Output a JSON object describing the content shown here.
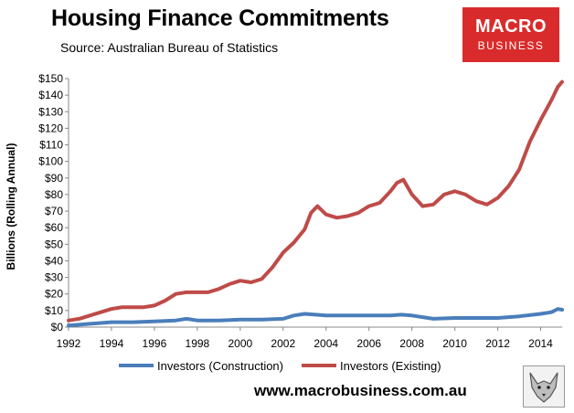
{
  "header": {
    "title": "Housing Finance Commitments",
    "subtitle": "Source: Australian Bureau of Statistics"
  },
  "logo": {
    "line1": "MACRO",
    "line2": "BUSINESS"
  },
  "footer": {
    "website": "www.macrobusiness.com.au",
    "mascot_icon": "fox-icon"
  },
  "colors": {
    "construction": "#4a7ebb",
    "existing": "#be4b48"
  },
  "chart_data": {
    "type": "line",
    "title": "Housing Finance Commitments",
    "xlabel": "",
    "ylabel": "Billions (Rolling Annual)",
    "xlim": [
      1992,
      2015
    ],
    "ylim": [
      0,
      150
    ],
    "grid": false,
    "legend": "bottom",
    "y_ticks": [
      "$0",
      "$10",
      "$20",
      "$30",
      "$40",
      "$50",
      "$60",
      "$70",
      "$80",
      "$90",
      "$100",
      "$110",
      "$120",
      "$130",
      "$140",
      "$150"
    ],
    "x_ticks": [
      "1992",
      "1994",
      "1996",
      "1998",
      "2000",
      "2002",
      "2004",
      "2006",
      "2008",
      "2010",
      "2012",
      "2014"
    ],
    "series": [
      {
        "name": "Investors (Construction)",
        "color": "#4a7ebb",
        "x": [
          1992,
          1993,
          1994,
          1995,
          1996,
          1997,
          1997.5,
          1998,
          1999,
          2000,
          2001,
          2002,
          2002.5,
          2003,
          2004,
          2005,
          2006,
          2007,
          2007.5,
          2008,
          2009,
          2010,
          2011,
          2012,
          2013,
          2014,
          2014.5,
          2014.8,
          2015
        ],
        "values": [
          1,
          2,
          3,
          3,
          3.5,
          4,
          5,
          4,
          4,
          4.5,
          4.5,
          5,
          7,
          8,
          7,
          7,
          7,
          7,
          7.5,
          7,
          5,
          5.5,
          5.5,
          5.5,
          6.5,
          8,
          9,
          11,
          10.5
        ]
      },
      {
        "name": "Investors (Existing)",
        "color": "#be4b48",
        "x": [
          1992,
          1992.5,
          1993,
          1993.5,
          1994,
          1994.5,
          1995,
          1995.5,
          1996,
          1996.5,
          1997,
          1997.5,
          1998,
          1998.5,
          1999,
          1999.5,
          2000,
          2000.5,
          2001,
          2001.5,
          2002,
          2002.5,
          2003,
          2003.3,
          2003.6,
          2004,
          2004.5,
          2005,
          2005.5,
          2006,
          2006.5,
          2007,
          2007.3,
          2007.6,
          2008,
          2008.5,
          2009,
          2009.5,
          2010,
          2010.5,
          2011,
          2011.5,
          2012,
          2012.5,
          2013,
          2013.5,
          2014,
          2014.5,
          2014.8,
          2015
        ],
        "values": [
          4,
          5,
          7,
          9,
          11,
          12,
          12,
          12,
          13,
          16,
          20,
          21,
          21,
          21,
          23,
          26,
          28,
          27,
          29,
          36,
          45,
          51,
          59,
          69,
          73,
          68,
          66,
          67,
          69,
          73,
          75,
          82,
          87,
          89,
          80,
          73,
          74,
          80,
          82,
          80,
          76,
          74,
          78,
          85,
          95,
          112,
          125,
          137,
          145,
          148
        ]
      }
    ]
  }
}
